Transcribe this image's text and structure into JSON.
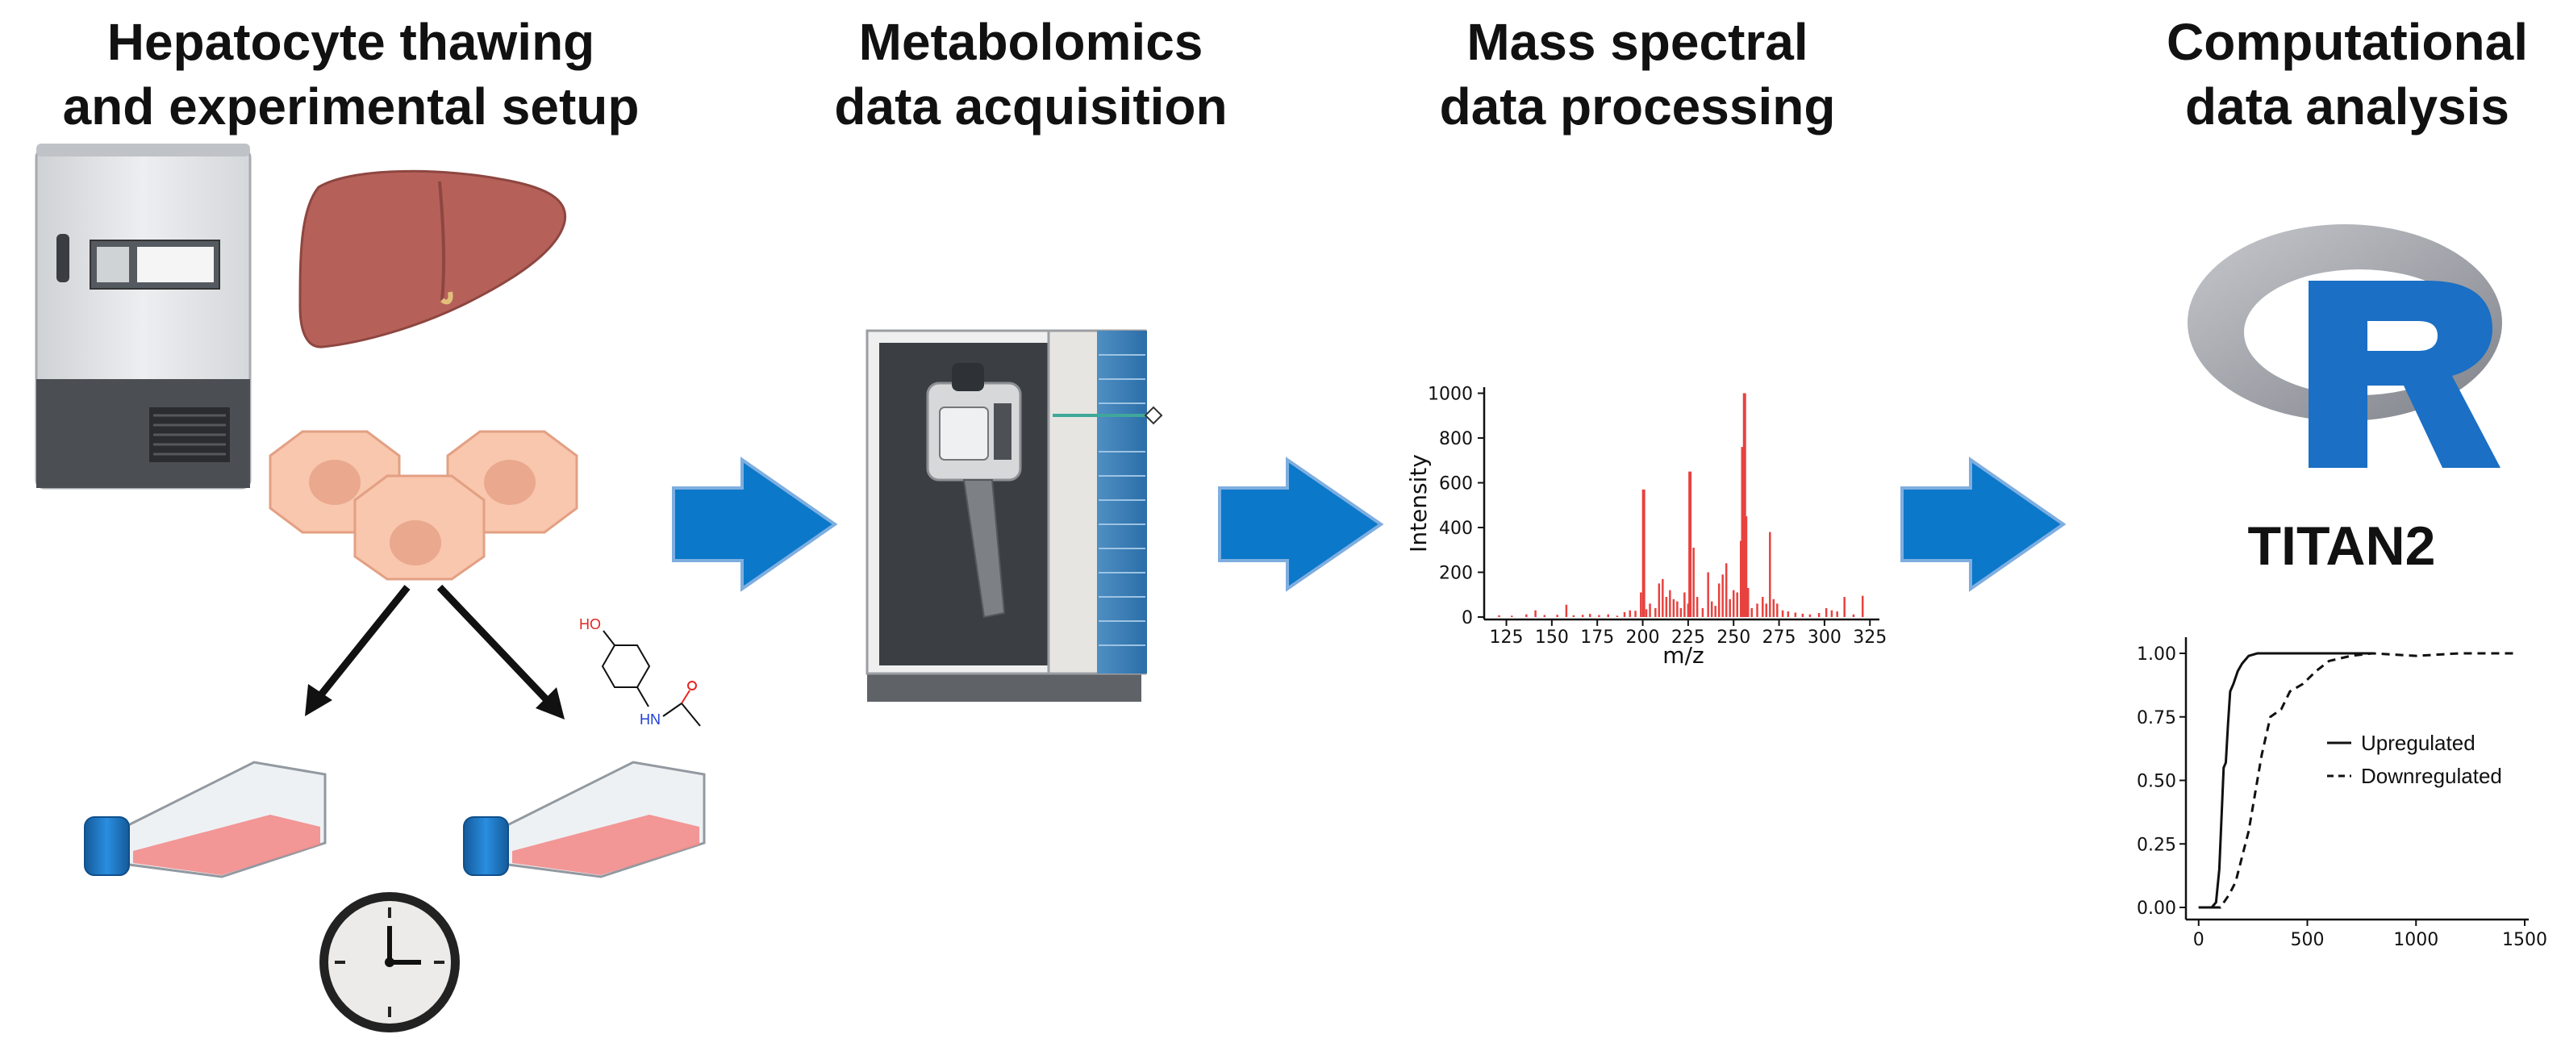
{
  "titles": {
    "step1_line1": "Hepatocyte thawing",
    "step1_line2": "and experimental setup",
    "step2_line1": "Metabolomics",
    "step2_line2": "data acquisition",
    "step3_line1": "Mass spectral",
    "step3_line2": "data processing",
    "step4_line1": "Computational",
    "step4_line2": "data analysis"
  },
  "software_label": "TITAN2",
  "molecule_labels": {
    "hydroxyl": "HO",
    "amide": "HN"
  },
  "colors": {
    "arrow": "#0b78c9",
    "spectrum": "#e8423f",
    "liver": "#b5615a",
    "cell": "#f8c7ad",
    "flask_media": "#f28c8c",
    "cap": "#1e7fd0",
    "r_logo_blue": "#1b6fc4",
    "r_logo_gray": "#9a9ca3"
  },
  "icons": [
    "freezer-icon",
    "liver-icon",
    "hepatocyte-cells-icon",
    "flask-icon",
    "clock-icon",
    "acetaminophen-structure-icon",
    "mass-spectrometer-icon",
    "r-logo-icon"
  ],
  "chart_data": [
    {
      "type": "bar",
      "title": "",
      "xlabel": "m/z",
      "ylabel": "Intensity",
      "xlim": [
        115,
        328
      ],
      "ylim": [
        0,
        1020
      ],
      "xticks": [
        125,
        150,
        175,
        200,
        225,
        250,
        275,
        300,
        325
      ],
      "yticks": [
        0,
        200,
        400,
        600,
        800,
        1000
      ],
      "x": [
        121,
        128,
        136,
        141,
        146,
        153,
        158,
        162,
        167,
        171,
        176,
        181,
        186,
        190,
        193,
        196,
        199,
        200.5,
        202,
        204,
        207,
        209,
        211,
        213,
        215,
        217,
        219,
        221,
        223,
        225,
        226,
        228,
        230,
        233,
        236,
        238,
        240,
        242,
        244,
        246,
        248,
        250,
        252,
        254,
        255,
        256,
        257,
        258,
        260,
        263,
        266,
        268,
        270,
        272,
        274,
        277,
        280,
        284,
        288,
        292,
        297,
        301,
        304,
        307,
        311,
        316,
        321
      ],
      "values": [
        8,
        6,
        12,
        30,
        9,
        10,
        55,
        8,
        10,
        14,
        9,
        12,
        6,
        22,
        30,
        28,
        110,
        570,
        35,
        60,
        40,
        150,
        170,
        90,
        120,
        80,
        70,
        40,
        110,
        60,
        650,
        310,
        90,
        40,
        200,
        70,
        50,
        150,
        190,
        240,
        80,
        120,
        110,
        340,
        760,
        1000,
        450,
        130,
        40,
        60,
        90,
        60,
        380,
        80,
        60,
        30,
        25,
        20,
        15,
        12,
        18,
        40,
        30,
        25,
        90,
        12,
        95
      ]
    },
    {
      "type": "line",
      "title": "",
      "xlabel": "",
      "ylabel": "",
      "xlim": [
        -40,
        1500
      ],
      "ylim": [
        0,
        1.0
      ],
      "xticks": [
        0,
        500,
        1000,
        1500
      ],
      "yticks": [
        0.0,
        0.25,
        0.5,
        0.75,
        1.0
      ],
      "ytick_labels": [
        "0.00",
        "0.25",
        "0.50",
        "0.75",
        "1.00"
      ],
      "legend_position": "center-right",
      "series": [
        {
          "name": "Upregulated",
          "style": "solid",
          "x": [
            0,
            60,
            80,
            95,
            105,
            115,
            125,
            135,
            145,
            160,
            180,
            200,
            230,
            270,
            350,
            500,
            800
          ],
          "values": [
            0,
            0,
            0.02,
            0.15,
            0.35,
            0.55,
            0.57,
            0.72,
            0.85,
            0.88,
            0.93,
            0.96,
            0.99,
            1.0,
            1.0,
            1.0,
            1.0
          ]
        },
        {
          "name": "Downregulated",
          "style": "dashed",
          "x": [
            0,
            100,
            140,
            170,
            200,
            230,
            260,
            290,
            330,
            380,
            420,
            480,
            540,
            600,
            700,
            800,
            1000,
            1200,
            1450
          ],
          "values": [
            0,
            0,
            0.05,
            0.1,
            0.2,
            0.3,
            0.45,
            0.6,
            0.75,
            0.78,
            0.85,
            0.88,
            0.93,
            0.97,
            0.99,
            1.0,
            0.99,
            1.0,
            1.0
          ]
        }
      ]
    }
  ]
}
